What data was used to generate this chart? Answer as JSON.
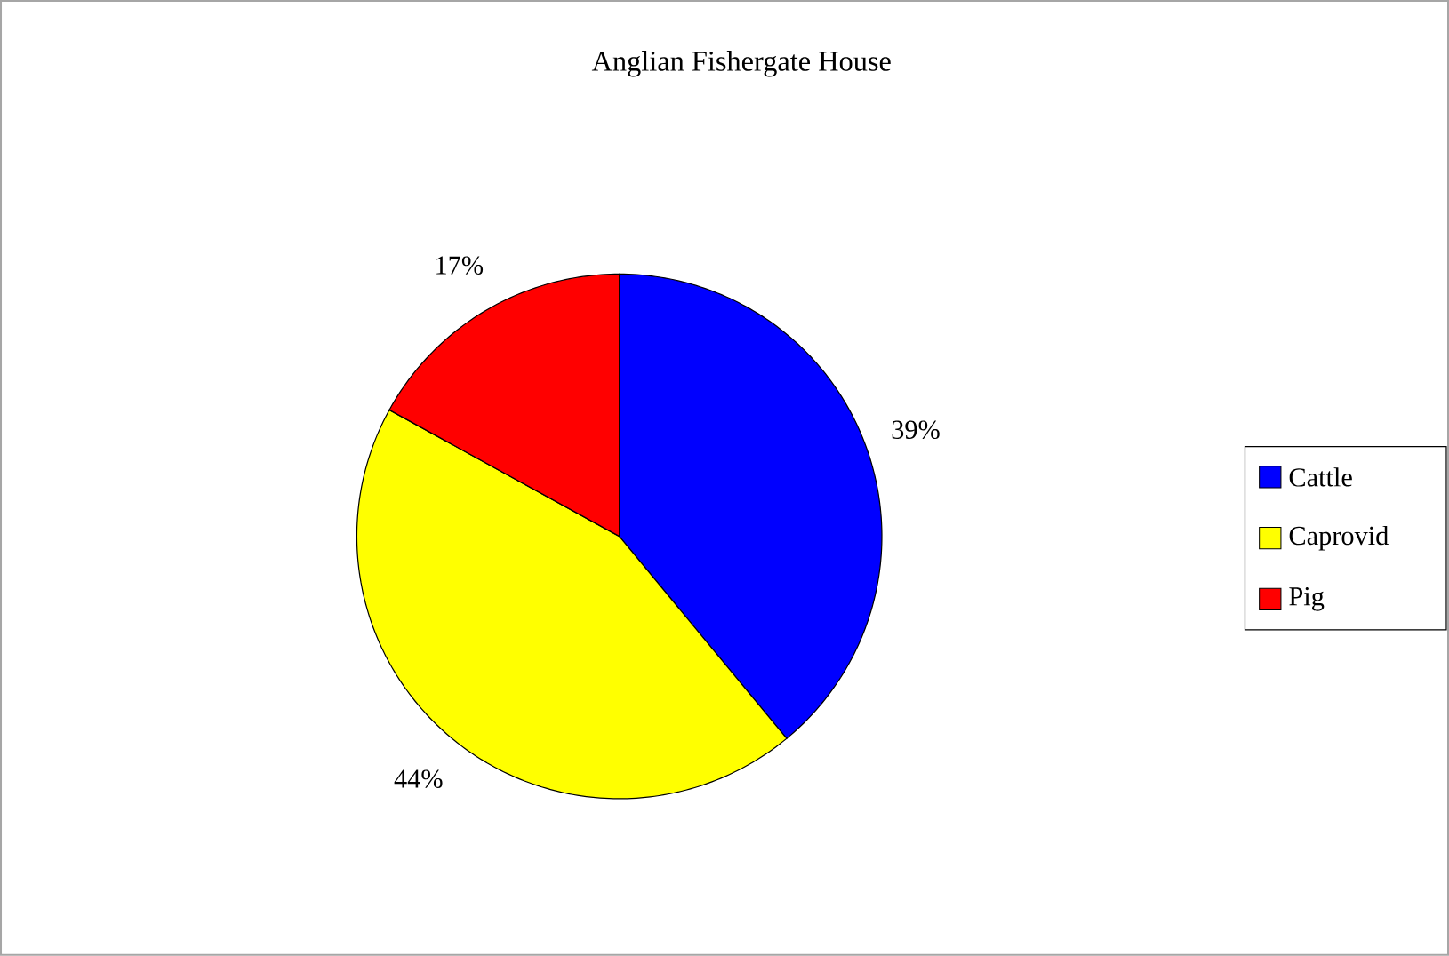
{
  "chart_data": {
    "type": "pie",
    "title": "Anglian Fishergate House",
    "categories": [
      "Cattle",
      "Caprovid",
      "Pig"
    ],
    "values": [
      39,
      44,
      17
    ],
    "colors": [
      "#0000ff",
      "#ffff00",
      "#ff0000"
    ],
    "value_labels": [
      "39%",
      "44%",
      "17%"
    ],
    "legend": "right"
  }
}
